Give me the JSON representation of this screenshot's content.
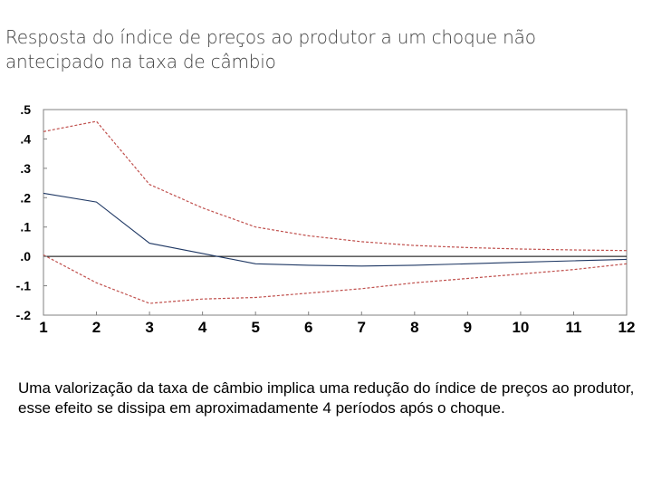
{
  "slide": {
    "title": "Resposta do índice de preços ao produtor a um choque não antecipado na taxa de câmbio",
    "caption": "Uma valorização da taxa de câmbio implica uma redução do índice de preços ao produtor, esse efeito se dissipa em aproximadamente 4 períodos após o choque."
  },
  "chart_data": {
    "type": "line",
    "title": "",
    "xlabel": "",
    "ylabel": "",
    "x": [
      1,
      2,
      3,
      4,
      5,
      6,
      7,
      8,
      9,
      10,
      11,
      12
    ],
    "x_tick_labels": [
      "1",
      "2",
      "3",
      "4",
      "5",
      "6",
      "7",
      "8",
      "9",
      "10",
      "11",
      "12"
    ],
    "y_ticks": [
      0.5,
      0.4,
      0.3,
      0.2,
      0.1,
      0.0,
      -0.1,
      -0.2
    ],
    "y_tick_labels": [
      ".5",
      ".4",
      ".3",
      ".2",
      ".1",
      ".0",
      "-.1",
      "-.2"
    ],
    "ylim": [
      -0.2,
      0.5
    ],
    "grid": false,
    "zero_line": true,
    "series": [
      {
        "values": [
          0.425,
          0.46,
          0.245,
          0.165,
          0.1,
          0.07,
          0.05,
          0.037,
          0.03,
          0.025,
          0.022,
          0.02
        ],
        "color": "#c0504d",
        "style": "dashed"
      },
      {
        "values": [
          0.215,
          0.185,
          0.045,
          0.01,
          -0.025,
          -0.03,
          -0.033,
          -0.03,
          -0.025,
          -0.02,
          -0.015,
          -0.01
        ],
        "color": "#1f3864",
        "style": "solid"
      },
      {
        "values": [
          0.005,
          -0.09,
          -0.16,
          -0.145,
          -0.14,
          -0.125,
          -0.11,
          -0.09,
          -0.075,
          -0.06,
          -0.045,
          -0.025
        ],
        "color": "#c0504d",
        "style": "dashed"
      }
    ]
  }
}
